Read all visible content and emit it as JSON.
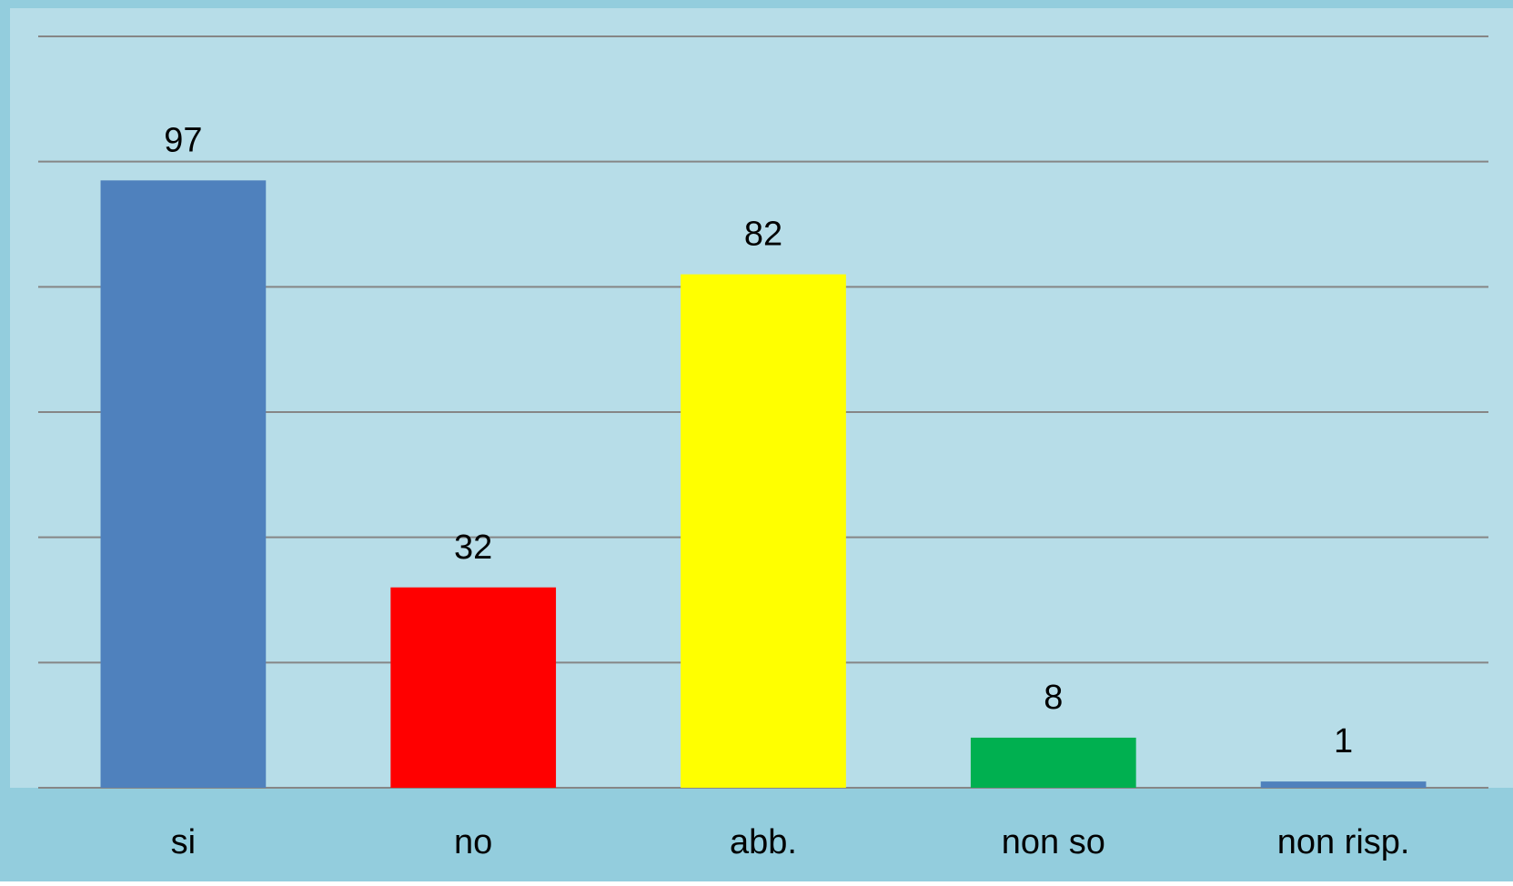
{
  "chart_data": {
    "type": "bar",
    "categories": [
      "si",
      "no",
      "abb.",
      "non so",
      "non risp."
    ],
    "values": [
      97,
      32,
      82,
      8,
      1
    ],
    "colors": [
      "#4f81bd",
      "#ff0000",
      "#ffff00",
      "#00b050",
      "#4f81bd"
    ],
    "ylim": [
      0,
      120
    ],
    "yticks": [
      0,
      20,
      40,
      60,
      80,
      100,
      120
    ],
    "grid": true
  }
}
